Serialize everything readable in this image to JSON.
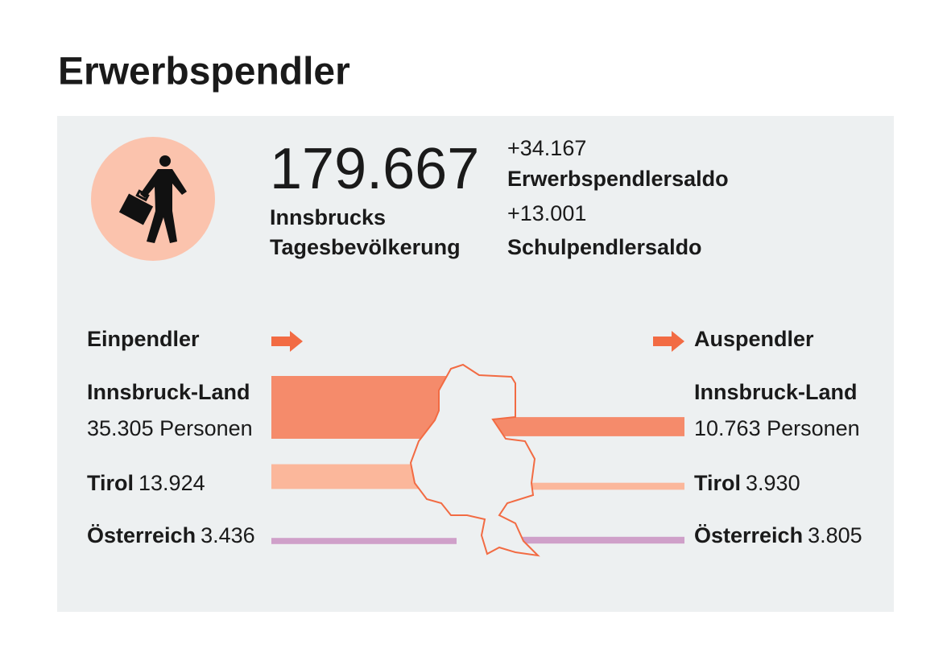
{
  "title": "Erwerbspendler",
  "summary": {
    "total": {
      "value": 179667,
      "label": "179.667"
    },
    "total_caption": [
      "Innsbrucks",
      "Tagesbevölkerung"
    ],
    "balances": [
      {
        "value": 34167,
        "label": "+34.167",
        "name": "Erwerbspendlersaldo"
      },
      {
        "value": 13001,
        "label": "+13.001",
        "name": "Schulpendlersaldo"
      }
    ]
  },
  "flows": {
    "in_title": "Einpendler",
    "out_title": "Auspendler",
    "rows": [
      {
        "name": "Innsbruck-Land",
        "color": "#f58b6b",
        "in": {
          "value": 35305,
          "label": "35.305 Personen"
        },
        "out": {
          "value": 10763,
          "label": "10.763 Personen"
        }
      },
      {
        "name": "Tirol",
        "color": "#fbb79b",
        "in": {
          "value": 13924,
          "label": "13.924"
        },
        "out": {
          "value": 3930,
          "label": "3.930"
        }
      },
      {
        "name": "Österreich",
        "color": "#cfa0c9",
        "in": {
          "value": 3436,
          "label": "3.436"
        },
        "out": {
          "value": 3805,
          "label": "3.805"
        }
      }
    ]
  }
}
